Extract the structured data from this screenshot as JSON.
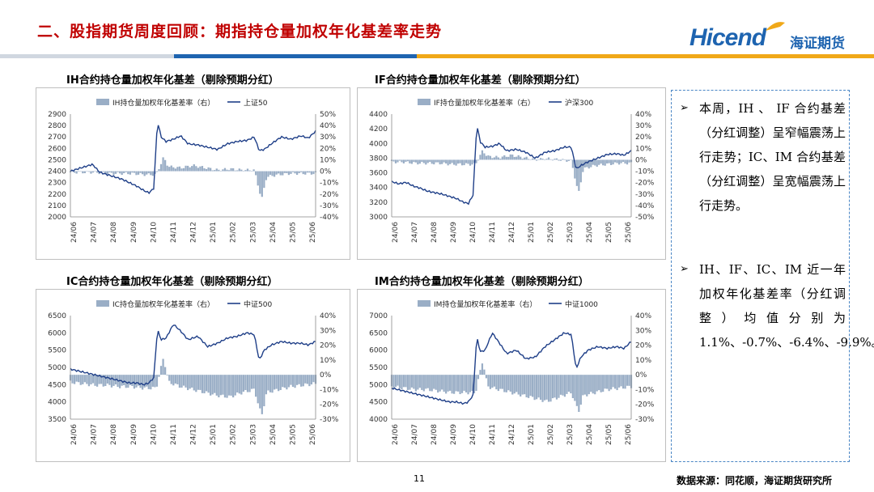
{
  "header": {
    "title": "二、股指期货周度回顾：期指持仓量加权年化基差率走势",
    "logo_en": "Hicend",
    "logo_cn": "海证期货"
  },
  "sidebar": {
    "bullets": [
      "本周，IH 、 IF 合约基差（分红调整）呈窄幅震荡上行走势；IC、IM 合约基差（分红调整）呈宽幅震荡上行走势。",
      "IH、IF、IC、IM 近一年加权年化基差率（分红调整）均值分别为 1.1%、-0.7%、-6.4%、-9.9%。"
    ]
  },
  "footer": {
    "page": "11",
    "source": "数据来源：同花顺，海证期货研究所"
  },
  "colors": {
    "bar": "#9aaec6",
    "line": "#1f3f88",
    "title_red": "#c00000",
    "brand_blue": "#1e64b0"
  },
  "chart_data": [
    {
      "type": "line",
      "title": "IH合约持仓量加权年化基差（剔除预期分红）",
      "xtick_labels": [
        "24/06",
        "24/07",
        "24/08",
        "24/09",
        "24/10",
        "24/11",
        "24/12",
        "25/01",
        "25/02",
        "25/03",
        "25/04",
        "25/05",
        "25/06"
      ],
      "ylim_left": [
        2000,
        2900
      ],
      "yticks_left": [
        2000,
        2100,
        2200,
        2300,
        2400,
        2500,
        2600,
        2700,
        2800,
        2900
      ],
      "ylim_right": [
        -40,
        50
      ],
      "yticks_right": [
        "-40%",
        "-30%",
        "-20%",
        "-10%",
        "0%",
        "10%",
        "20%",
        "30%",
        "40%",
        "50%"
      ],
      "series": [
        {
          "name": "IH持仓量加权年化基差率（右）",
          "kind": "bar",
          "t": [
            0,
            0.05,
            0.1,
            0.15,
            0.2,
            0.25,
            0.3,
            0.35,
            0.38,
            0.4,
            0.45,
            0.5,
            0.55,
            0.6,
            0.65,
            0.7,
            0.75,
            0.78,
            0.8,
            0.85,
            0.9,
            0.95,
            1
          ],
          "values": [
            -1,
            -1,
            -1,
            -2,
            -2,
            -2,
            -3,
            -3,
            12,
            4,
            3,
            5,
            3,
            1,
            2,
            1,
            1,
            -25,
            -5,
            -3,
            -2,
            -2,
            -2
          ]
        },
        {
          "name": "上证50",
          "kind": "line",
          "t": [
            0,
            0.03,
            0.06,
            0.09,
            0.12,
            0.15,
            0.18,
            0.21,
            0.24,
            0.27,
            0.3,
            0.32,
            0.34,
            0.355,
            0.37,
            0.39,
            0.42,
            0.45,
            0.48,
            0.52,
            0.56,
            0.6,
            0.64,
            0.68,
            0.72,
            0.75,
            0.77,
            0.79,
            0.82,
            0.86,
            0.9,
            0.94,
            0.97,
            1
          ],
          "values": [
            2400,
            2420,
            2440,
            2460,
            2390,
            2370,
            2350,
            2330,
            2300,
            2270,
            2230,
            2210,
            2250,
            2840,
            2700,
            2660,
            2680,
            2710,
            2640,
            2630,
            2610,
            2590,
            2640,
            2660,
            2670,
            2700,
            2580,
            2590,
            2640,
            2700,
            2680,
            2710,
            2690,
            2750
          ]
        }
      ]
    },
    {
      "type": "line",
      "title": "IF合约持仓量加权年化基差（剔除预期分红）",
      "xtick_labels": [
        "24/06",
        "24/07",
        "24/08",
        "24/09",
        "24/10",
        "24/11",
        "24/12",
        "25/01",
        "25/02",
        "25/03",
        "25/04",
        "25/05",
        "25/06"
      ],
      "ylim_left": [
        3000,
        4400
      ],
      "yticks_left": [
        3000,
        3200,
        3400,
        3600,
        3800,
        4000,
        4200,
        4400
      ],
      "ylim_right": [
        -50,
        40
      ],
      "yticks_right": [
        "-50%",
        "-40%",
        "-30%",
        "-20%",
        "-10%",
        "0%",
        "10%",
        "20%",
        "30%",
        "40%"
      ],
      "series": [
        {
          "name": "IF持仓量加权年化基差率（右）",
          "kind": "bar",
          "t": [
            0,
            0.05,
            0.1,
            0.15,
            0.2,
            0.25,
            0.3,
            0.35,
            0.38,
            0.4,
            0.45,
            0.5,
            0.55,
            0.6,
            0.65,
            0.7,
            0.75,
            0.78,
            0.8,
            0.85,
            0.9,
            0.95,
            1
          ],
          "values": [
            -2,
            -2,
            -3,
            -3,
            -3,
            -4,
            -4,
            -4,
            8,
            3,
            2,
            4,
            2,
            0,
            1,
            0,
            -1,
            -30,
            -8,
            -5,
            -4,
            -3,
            -3
          ]
        },
        {
          "name": "沪深300",
          "kind": "line",
          "t": [
            0,
            0.03,
            0.06,
            0.09,
            0.12,
            0.15,
            0.18,
            0.21,
            0.24,
            0.27,
            0.3,
            0.32,
            0.34,
            0.355,
            0.37,
            0.39,
            0.42,
            0.45,
            0.48,
            0.52,
            0.56,
            0.6,
            0.64,
            0.68,
            0.72,
            0.75,
            0.77,
            0.79,
            0.82,
            0.86,
            0.9,
            0.94,
            0.97,
            1
          ],
          "values": [
            3480,
            3450,
            3470,
            3420,
            3390,
            3350,
            3330,
            3310,
            3280,
            3250,
            3200,
            3180,
            3300,
            4260,
            4020,
            3950,
            3960,
            4000,
            3900,
            3920,
            3880,
            3800,
            3880,
            3900,
            3950,
            3950,
            3650,
            3700,
            3750,
            3800,
            3850,
            3860,
            3840,
            3900
          ]
        }
      ]
    },
    {
      "type": "line",
      "title": "IC合约持仓量加权年化基差（剔除预期分红）",
      "xtick_labels": [
        "24/06",
        "24/07",
        "24/08",
        "24/09",
        "24/10",
        "24/11",
        "24/12",
        "25/01",
        "25/02",
        "25/03",
        "25/04",
        "25/05",
        "25/06"
      ],
      "ylim_left": [
        3500,
        6500
      ],
      "yticks_left": [
        3500,
        4000,
        4500,
        5000,
        5500,
        6000,
        6500
      ],
      "ylim_right": [
        -30,
        40
      ],
      "yticks_right": [
        "-30%",
        "-20%",
        "-10%",
        "0%",
        "10%",
        "20%",
        "30%",
        "40%"
      ],
      "series": [
        {
          "name": "IC持仓量加权年化基差率（右）",
          "kind": "bar",
          "t": [
            0,
            0.05,
            0.1,
            0.15,
            0.2,
            0.25,
            0.3,
            0.35,
            0.38,
            0.4,
            0.45,
            0.5,
            0.55,
            0.6,
            0.65,
            0.7,
            0.75,
            0.78,
            0.8,
            0.85,
            0.9,
            0.95,
            1
          ],
          "values": [
            -5,
            -6,
            -7,
            -7,
            -8,
            -8,
            -9,
            -9,
            12,
            -5,
            -8,
            -10,
            -12,
            -14,
            -15,
            -12,
            -10,
            -28,
            -12,
            -10,
            -8,
            -7,
            -6
          ]
        },
        {
          "name": "中证500",
          "kind": "line",
          "t": [
            0,
            0.03,
            0.06,
            0.09,
            0.12,
            0.15,
            0.18,
            0.21,
            0.24,
            0.27,
            0.3,
            0.32,
            0.34,
            0.355,
            0.37,
            0.39,
            0.42,
            0.45,
            0.48,
            0.52,
            0.56,
            0.6,
            0.64,
            0.68,
            0.72,
            0.75,
            0.77,
            0.79,
            0.82,
            0.86,
            0.9,
            0.94,
            0.97,
            1
          ],
          "values": [
            4950,
            4900,
            4850,
            4800,
            4750,
            4700,
            4650,
            4600,
            4550,
            4550,
            4500,
            4550,
            4700,
            6100,
            5800,
            5850,
            6250,
            6050,
            5800,
            5900,
            5600,
            5700,
            5850,
            5900,
            6000,
            5950,
            5200,
            5500,
            5650,
            5750,
            5700,
            5700,
            5650,
            5750
          ]
        }
      ]
    },
    {
      "type": "line",
      "title": "IM合约持仓量加权年化基差（剔除预期分红）",
      "xtick_labels": [
        "24/06",
        "24/07",
        "24/08",
        "24/09",
        "24/10",
        "24/11",
        "24/12",
        "25/01",
        "25/02",
        "25/03",
        "25/04",
        "25/05",
        "25/06"
      ],
      "ylim_left": [
        4000,
        7000
      ],
      "yticks_left": [
        4000,
        4500,
        5000,
        5500,
        6000,
        6500,
        7000
      ],
      "ylim_right": [
        -30,
        40
      ],
      "yticks_right": [
        "-30%",
        "-20%",
        "-10%",
        "0%",
        "10%",
        "20%",
        "30%",
        "40%"
      ],
      "series": [
        {
          "name": "IM持仓量加权年化基差率（右）",
          "kind": "bar",
          "t": [
            0,
            0.05,
            0.1,
            0.15,
            0.2,
            0.25,
            0.3,
            0.35,
            0.38,
            0.4,
            0.45,
            0.5,
            0.55,
            0.6,
            0.65,
            0.7,
            0.75,
            0.78,
            0.8,
            0.85,
            0.9,
            0.95,
            1
          ],
          "values": [
            -8,
            -9,
            -10,
            -10,
            -11,
            -12,
            -12,
            -12,
            10,
            -8,
            -10,
            -12,
            -14,
            -16,
            -18,
            -15,
            -12,
            -25,
            -14,
            -12,
            -10,
            -9,
            -8
          ]
        },
        {
          "name": "中证1000",
          "kind": "line",
          "t": [
            0,
            0.03,
            0.06,
            0.09,
            0.12,
            0.15,
            0.18,
            0.21,
            0.24,
            0.27,
            0.3,
            0.32,
            0.34,
            0.355,
            0.37,
            0.39,
            0.42,
            0.45,
            0.48,
            0.52,
            0.56,
            0.6,
            0.64,
            0.68,
            0.72,
            0.75,
            0.77,
            0.79,
            0.82,
            0.86,
            0.9,
            0.94,
            0.97,
            1
          ],
          "values": [
            4900,
            4850,
            4800,
            4750,
            4700,
            4650,
            4600,
            4550,
            4500,
            4500,
            4450,
            4500,
            4700,
            6400,
            5950,
            6000,
            6500,
            6200,
            5900,
            6000,
            5750,
            5800,
            6100,
            6300,
            6500,
            6450,
            5450,
            5800,
            6000,
            6100,
            6050,
            6100,
            6050,
            6250
          ]
        }
      ]
    }
  ]
}
